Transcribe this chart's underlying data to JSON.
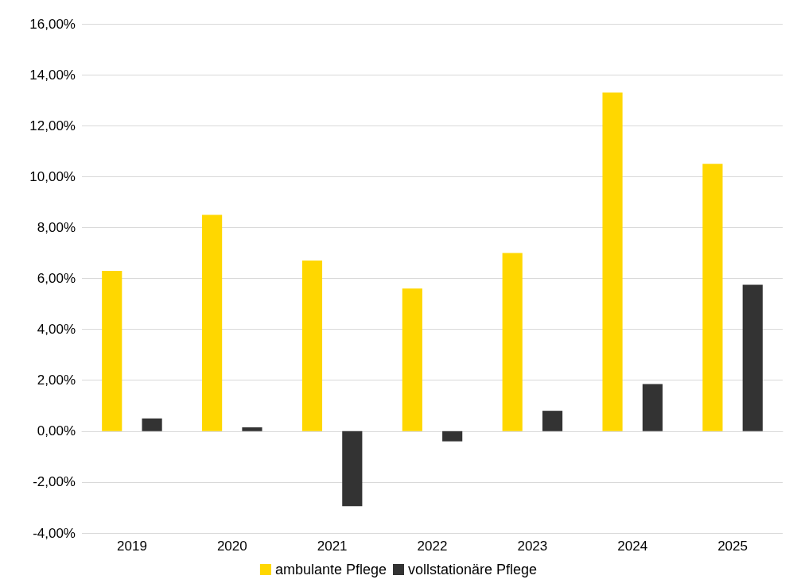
{
  "chart_data": {
    "type": "bar",
    "categories": [
      "2019",
      "2020",
      "2021",
      "2022",
      "2023",
      "2024",
      "2025"
    ],
    "series": [
      {
        "name": "ambulante Pflege",
        "color": "#ffd700",
        "values": [
          6.3,
          8.5,
          6.7,
          5.6,
          7.0,
          13.3,
          10.5
        ]
      },
      {
        "name": "vollstationäre Pflege",
        "color": "#333333",
        "values": [
          0.5,
          0.15,
          -2.95,
          -0.4,
          0.8,
          1.85,
          5.75
        ]
      }
    ],
    "ylim": [
      -4,
      16
    ],
    "yticks": [
      {
        "value": -4,
        "label": "-4,00%"
      },
      {
        "value": -2,
        "label": "-2,00%"
      },
      {
        "value": 0,
        "label": "0,00%"
      },
      {
        "value": 2,
        "label": "2,00%"
      },
      {
        "value": 4,
        "label": "4,00%"
      },
      {
        "value": 6,
        "label": "6,00%"
      },
      {
        "value": 8,
        "label": "8,00%"
      },
      {
        "value": 10,
        "label": "10,00%"
      },
      {
        "value": 12,
        "label": "12,00%"
      },
      {
        "value": 14,
        "label": "14,00%"
      },
      {
        "value": 16,
        "label": "16,00%"
      }
    ],
    "grid": "y",
    "legend": "bottom"
  }
}
